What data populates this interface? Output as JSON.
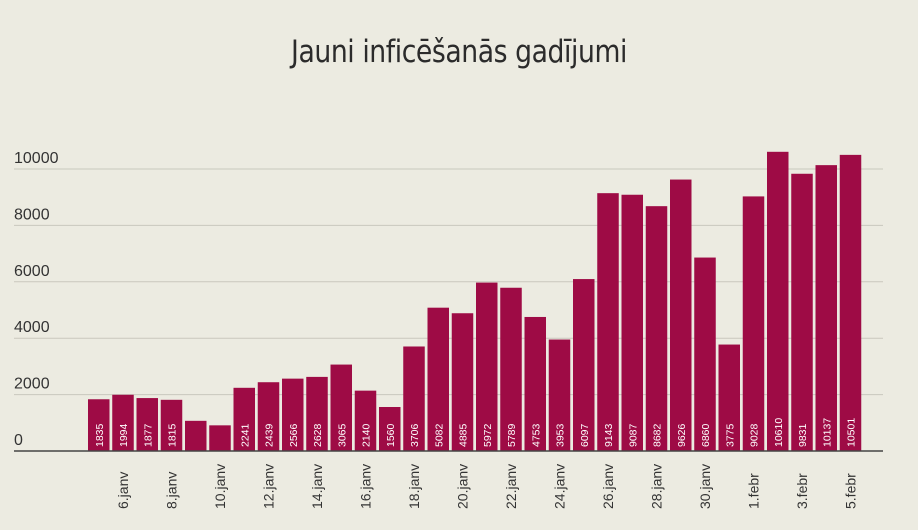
{
  "chart_data": {
    "type": "bar",
    "title": "Jauni inficēšanās gadījumi",
    "xlabel": "",
    "ylabel": "",
    "ylim": [
      0,
      10000
    ],
    "y_ticks": [
      0,
      2000,
      4000,
      6000,
      8000,
      10000
    ],
    "grid": true,
    "bar_color": "#9e0b45",
    "x_tick_labels": [
      {
        "index": 1,
        "label": "6.janv"
      },
      {
        "index": 3,
        "label": "8.janv"
      },
      {
        "index": 5,
        "label": "10.janv"
      },
      {
        "index": 7,
        "label": "12.janv"
      },
      {
        "index": 9,
        "label": "14.janv"
      },
      {
        "index": 11,
        "label": "16.janv"
      },
      {
        "index": 13,
        "label": "18.janv"
      },
      {
        "index": 15,
        "label": "20.janv"
      },
      {
        "index": 17,
        "label": "22.janv"
      },
      {
        "index": 19,
        "label": "24.janv"
      },
      {
        "index": 21,
        "label": "26.janv"
      },
      {
        "index": 23,
        "label": "28.janv"
      },
      {
        "index": 25,
        "label": "30.janv"
      },
      {
        "index": 27,
        "label": "1.febr"
      },
      {
        "index": 29,
        "label": "3.febr"
      },
      {
        "index": 31,
        "label": "5.febr"
      }
    ],
    "values": [
      1835,
      1994,
      1877,
      1815,
      1070,
      910,
      2241,
      2439,
      2566,
      2628,
      3065,
      2140,
      1560,
      3706,
      5082,
      4885,
      5972,
      5789,
      4753,
      3953,
      6097,
      9143,
      9087,
      8682,
      9626,
      6860,
      3775,
      9028,
      10610,
      9831,
      10137,
      10501
    ],
    "data_labels": [
      "1835",
      "1994",
      "1877",
      "1815",
      "",
      "",
      "2241",
      "2439",
      "2566",
      "2628",
      "3065",
      "2140",
      "1560",
      "3706",
      "5082",
      "4885",
      "5972",
      "5789",
      "4753",
      "3953",
      "6097",
      "9143",
      "9087",
      "8682",
      "9626",
      "6860",
      "3775",
      "9028",
      "10610",
      "9831",
      "10137",
      "10501"
    ]
  }
}
